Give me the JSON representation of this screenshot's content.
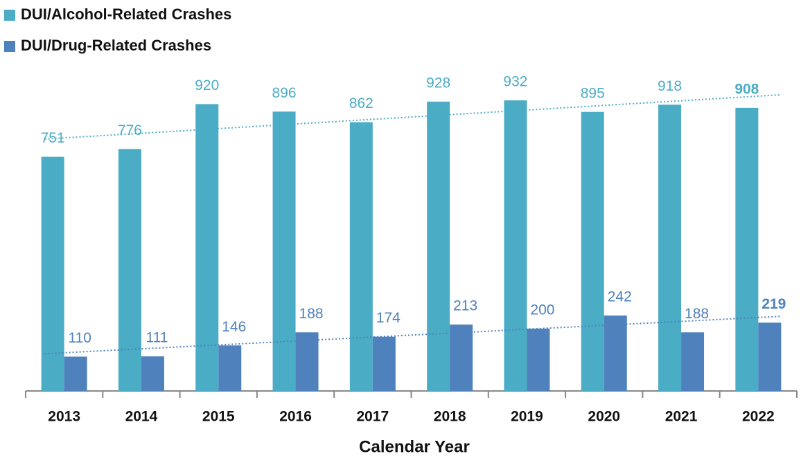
{
  "chart_data": {
    "type": "bar",
    "x_label": "Calendar Year",
    "categories": [
      "2013",
      "2014",
      "2015",
      "2016",
      "2017",
      "2018",
      "2019",
      "2020",
      "2021",
      "2022"
    ],
    "series": [
      {
        "name": "DUI/Alcohol-Related Crashes",
        "color": "#4bacc6",
        "values": [
          751,
          776,
          920,
          896,
          862,
          928,
          932,
          895,
          918,
          908
        ]
      },
      {
        "name": "DUI/Drug-Related Crashes",
        "color": "#4f81bd",
        "values": [
          110,
          111,
          146,
          188,
          174,
          213,
          200,
          242,
          188,
          219
        ]
      }
    ],
    "trendline": true,
    "legend": "top-left"
  }
}
